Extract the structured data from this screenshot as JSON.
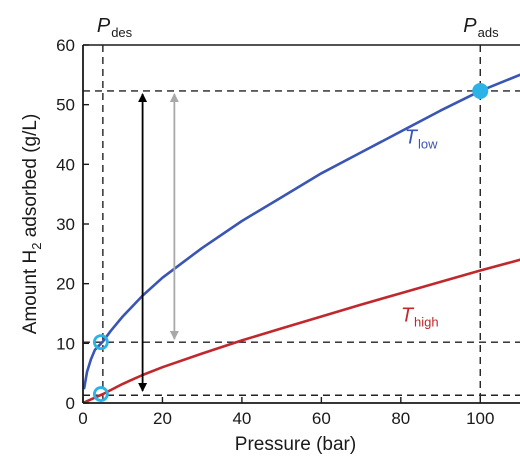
{
  "chart_data": {
    "type": "line",
    "xlabel": "Pressure (bar)",
    "ylabel": {
      "pre": "Amount H",
      "sub": "2",
      "post": " adsorbed (g/L)"
    },
    "xlim": [
      0,
      110
    ],
    "ylim": [
      0,
      60
    ],
    "x_ticks": [
      0,
      20,
      40,
      60,
      80,
      100
    ],
    "y_ticks": [
      0,
      10,
      20,
      30,
      40,
      50,
      60
    ],
    "grid": false,
    "series": [
      {
        "name_main": "T",
        "name_sub": "low",
        "color": "#3a55b4",
        "x": [
          0.3,
          1,
          2,
          3,
          4,
          5,
          7,
          10,
          15,
          20,
          25,
          30,
          40,
          50,
          60,
          70,
          80,
          90,
          100,
          110
        ],
        "y": [
          2.5,
          5.2,
          7.3,
          8.9,
          9.6,
          10.3,
          12.1,
          14.5,
          18.0,
          21.0,
          23.5,
          26.0,
          30.5,
          34.5,
          38.5,
          42.0,
          45.5,
          49.0,
          52.3,
          55.0
        ]
      },
      {
        "name_main": "T",
        "name_sub": "high",
        "color": "#c0282d",
        "x": [
          0.3,
          2,
          5,
          10,
          15,
          20,
          30,
          40,
          50,
          60,
          70,
          80,
          90,
          100,
          110
        ],
        "y": [
          0.1,
          0.6,
          1.5,
          3.2,
          4.7,
          6.0,
          8.3,
          10.5,
          12.5,
          14.5,
          16.5,
          18.4,
          20.3,
          22.2,
          24.0
        ]
      }
    ],
    "annotations": {
      "p_des": {
        "main": "P",
        "sub": "des",
        "x": 5
      },
      "p_ads": {
        "main": "P",
        "sub": "ads",
        "x": 100
      },
      "h_refs": [
        52.3,
        10.2,
        1.3
      ],
      "markers": [
        {
          "x": 100,
          "y": 52.3,
          "style": "filled",
          "color": "#2bb3e8"
        },
        {
          "x": 4.5,
          "y": 10.2,
          "style": "open",
          "color": "#2bb3e8"
        },
        {
          "x": 4.5,
          "y": 1.5,
          "style": "open",
          "color": "#2bb3e8"
        }
      ],
      "arrows": [
        {
          "x": 15,
          "y_from": 1.5,
          "y_to": 52.3,
          "color": "#000000"
        },
        {
          "x": 23,
          "y_from": 10.2,
          "y_to": 52.3,
          "color": "#a8a8a8"
        }
      ]
    }
  }
}
